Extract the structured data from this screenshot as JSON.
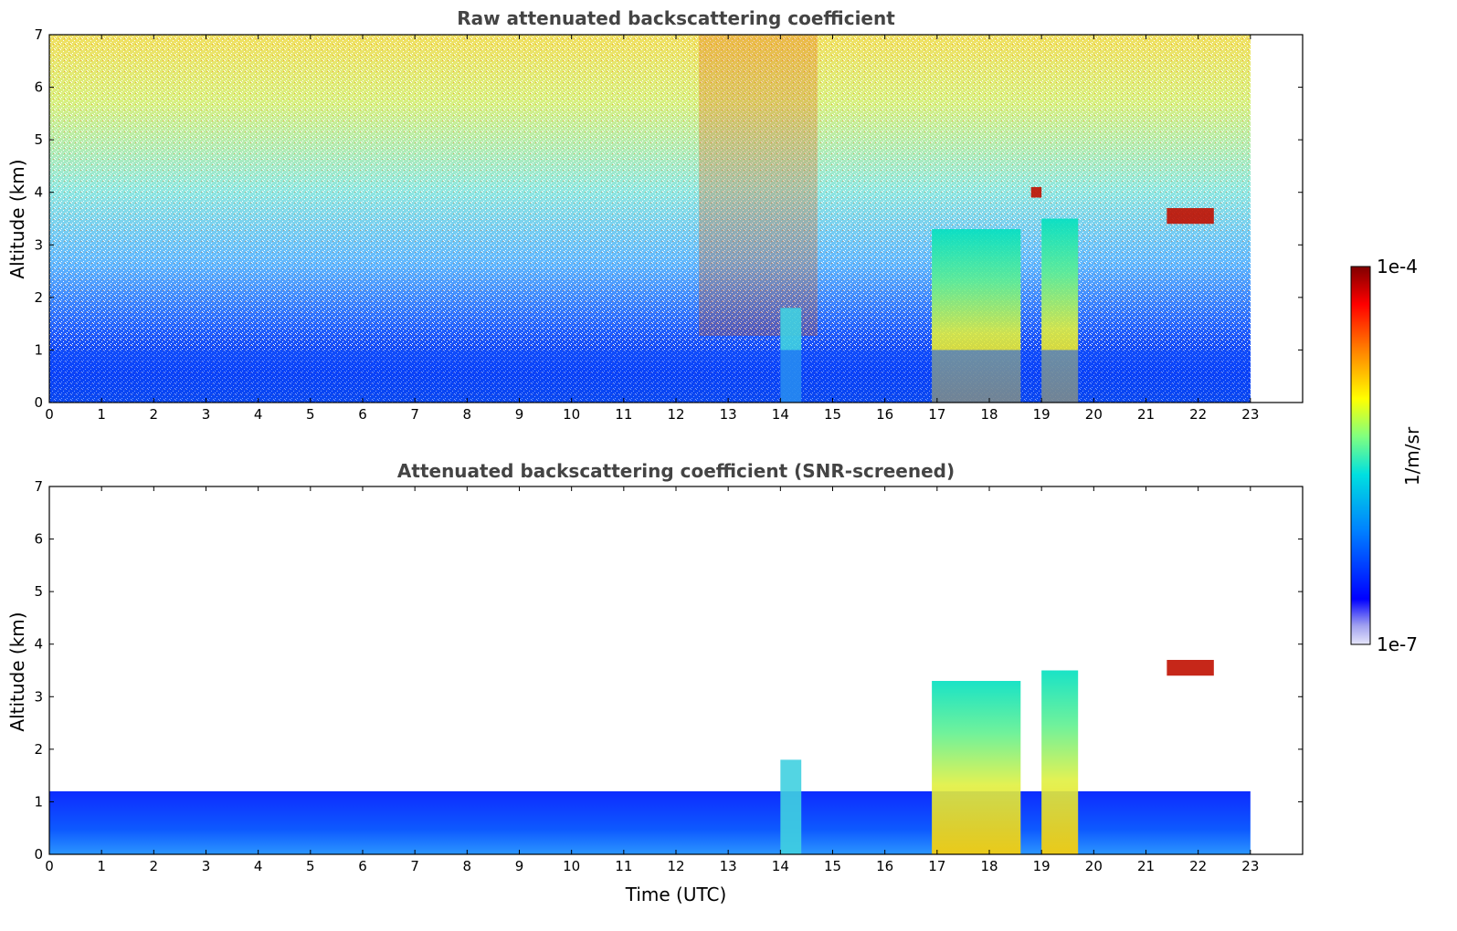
{
  "chart_data": [
    {
      "type": "heatmap",
      "title": "Raw attenuated backscattering coefficient",
      "xlabel": "",
      "ylabel": "Altitude (km)",
      "xlim": [
        0,
        24
      ],
      "ylim": [
        0,
        7
      ],
      "x_ticks": [
        0,
        1,
        2,
        3,
        4,
        5,
        6,
        7,
        8,
        9,
        10,
        11,
        12,
        13,
        14,
        15,
        16,
        17,
        18,
        19,
        20,
        21,
        22,
        23
      ],
      "y_ticks": [
        0,
        1,
        2,
        3,
        4,
        5,
        6,
        7
      ],
      "data_end_time": 23,
      "features": [
        {
          "kind": "cloud",
          "time": [
            14.0,
            14.4
          ],
          "alt": [
            0,
            1.8
          ],
          "level": "mid"
        },
        {
          "kind": "cloud",
          "time": [
            16.9,
            18.6
          ],
          "alt": [
            0,
            3.3
          ],
          "level": "mid-high"
        },
        {
          "kind": "cloud",
          "time": [
            19.0,
            19.7
          ],
          "alt": [
            0,
            3.5
          ],
          "level": "mid-high"
        },
        {
          "kind": "cloud",
          "time": [
            21.4,
            22.3
          ],
          "alt": [
            3.4,
            3.7
          ],
          "level": "high"
        },
        {
          "kind": "cloud",
          "time": [
            18.8,
            19.0
          ],
          "alt": [
            3.9,
            4.1
          ],
          "level": "high"
        },
        {
          "kind": "boundary_layer",
          "time": [
            0,
            23
          ],
          "alt": [
            0,
            1.0
          ],
          "level": "low-mid"
        }
      ]
    },
    {
      "type": "heatmap",
      "title": "Attenuated backscattering coefficient (SNR-screened)",
      "xlabel": "Time (UTC)",
      "ylabel": "Altitude (km)",
      "xlim": [
        0,
        24
      ],
      "ylim": [
        0,
        7
      ],
      "x_ticks": [
        0,
        1,
        2,
        3,
        4,
        5,
        6,
        7,
        8,
        9,
        10,
        11,
        12,
        13,
        14,
        15,
        16,
        17,
        18,
        19,
        20,
        21,
        22,
        23
      ],
      "y_ticks": [
        0,
        1,
        2,
        3,
        4,
        5,
        6,
        7
      ],
      "data_end_time": 23,
      "features": [
        {
          "kind": "boundary_layer",
          "time": [
            0,
            23
          ],
          "alt": [
            0,
            1.2
          ],
          "level": "low"
        },
        {
          "kind": "cloud",
          "time": [
            14.0,
            14.4
          ],
          "alt": [
            0,
            1.8
          ],
          "level": "mid"
        },
        {
          "kind": "cloud",
          "time": [
            16.9,
            18.6
          ],
          "alt": [
            0,
            3.3
          ],
          "level": "mid-high"
        },
        {
          "kind": "cloud",
          "time": [
            19.0,
            19.7
          ],
          "alt": [
            0,
            3.5
          ],
          "level": "mid-high"
        },
        {
          "kind": "cloud",
          "time": [
            21.4,
            22.3
          ],
          "alt": [
            3.4,
            3.7
          ],
          "level": "high"
        }
      ]
    }
  ],
  "colorbar": {
    "label": "1/m/sr",
    "max_label": "1e-4",
    "min_label": "1e-7",
    "scale": "log",
    "colormap": "jet",
    "colors": [
      "#e6e6fa",
      "#0000ff",
      "#0080ff",
      "#00e0e0",
      "#80ff80",
      "#ffff00",
      "#ff8000",
      "#ff0000",
      "#800000"
    ]
  }
}
